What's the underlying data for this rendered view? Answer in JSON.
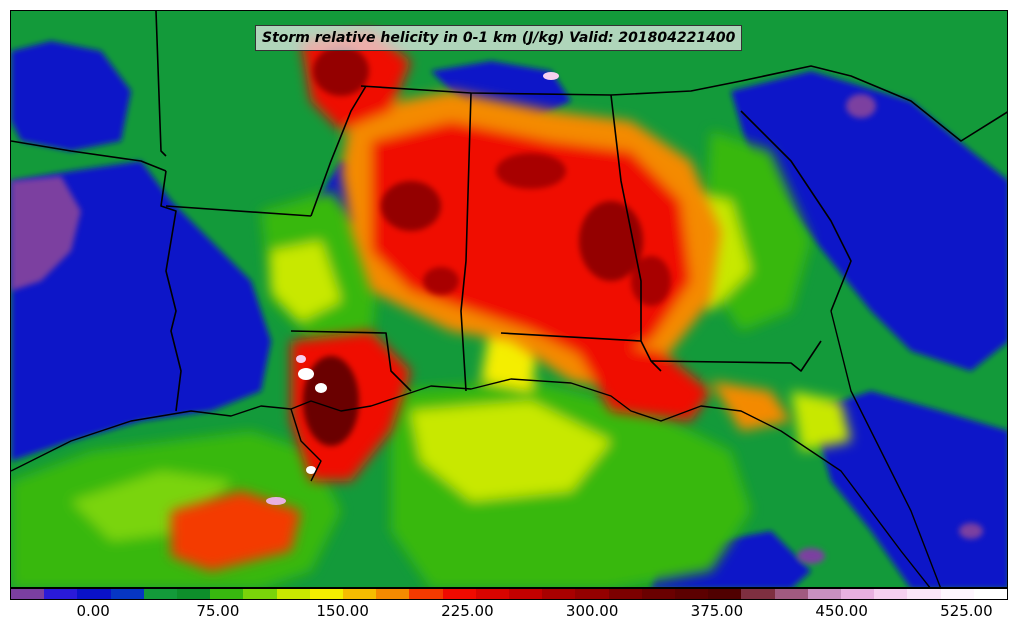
{
  "title": "Storm relative helicity in 0-1 km (J/kg) Valid: 201804221400",
  "colorbar": {
    "colors": [
      "#7b3fa0",
      "#2a1ad8",
      "#0a12c8",
      "#0636c4",
      "#139a3a",
      "#0e8e2b",
      "#38b80f",
      "#7ad40a",
      "#c8e800",
      "#f4ee00",
      "#f6bc00",
      "#f48a00",
      "#f43a00",
      "#f00a00",
      "#d80400",
      "#c40000",
      "#a80000",
      "#940000",
      "#7c0000",
      "#6a0000",
      "#5c0000",
      "#500000",
      "#7e2f40",
      "#a05a80",
      "#c890c0",
      "#e8b0e0",
      "#f6d0f0",
      "#fbe6f8",
      "#fef6fe",
      "#ffffff"
    ],
    "tick_labels": [
      "0.00",
      "75.00",
      "150.00",
      "225.00",
      "300.00",
      "375.00",
      "450.00",
      "525.00"
    ],
    "tick_values": [
      0,
      75,
      150,
      225,
      300,
      375,
      450,
      525
    ],
    "min": -50,
    "max": 550
  }
}
